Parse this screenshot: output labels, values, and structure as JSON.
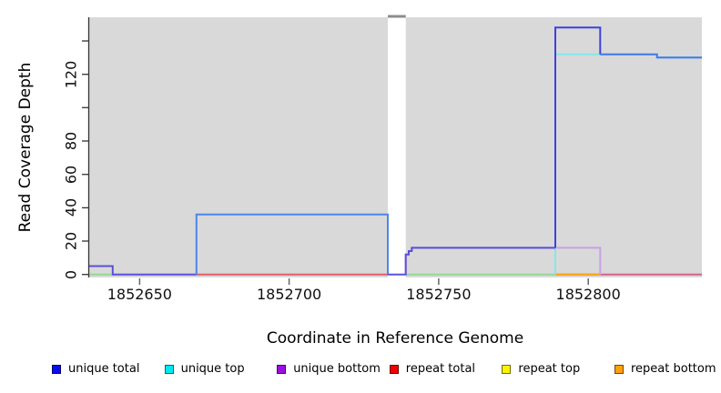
{
  "figure": {
    "background": "#ffffff",
    "panel_background": "#d9d9d9",
    "axis_color": "#333333",
    "gap_cap_color": "#8c8c8c"
  },
  "legend": {
    "items": [
      {
        "label": "unique total",
        "color": "#0b0bf0"
      },
      {
        "label": "unique top",
        "color": "#00e8f0"
      },
      {
        "label": "unique bottom",
        "color": "#9a10e0"
      },
      {
        "label": "repeat total",
        "color": "#f00000"
      },
      {
        "label": "repeat top",
        "color": "#fff200"
      },
      {
        "label": "repeat bottom",
        "color": "#ffa008"
      }
    ]
  },
  "chart_data": {
    "type": "line",
    "subtype": "step-coverage",
    "title": "",
    "xlabel": "Coordinate in Reference Genome",
    "ylabel": "Read Coverage Depth",
    "xlim": [
      1852633,
      1852838
    ],
    "ylim": [
      0,
      154
    ],
    "grid": false,
    "legend_position": "bottom",
    "panel_bg": "#d9d9d9",
    "x_ticks": [
      {
        "value": 1852650,
        "label": "1852650"
      },
      {
        "value": 1852700,
        "label": "1852700"
      },
      {
        "value": 1852750,
        "label": "1852750"
      },
      {
        "value": 1852800,
        "label": "1852800"
      }
    ],
    "y_ticks": [
      {
        "value": 0,
        "label": "0"
      },
      {
        "value": 20,
        "label": "20"
      },
      {
        "value": 40,
        "label": "40"
      },
      {
        "value": 60,
        "label": "60"
      },
      {
        "value": 80,
        "label": "80"
      },
      {
        "value": 100,
        "label": ""
      },
      {
        "value": 120,
        "label": "120"
      },
      {
        "value": 140,
        "label": ""
      }
    ],
    "gap_region": {
      "x_start": 1852733,
      "x_end": 1852739
    },
    "series": [
      {
        "name": "unique total",
        "x": [
          1852633,
          1852641,
          1852669,
          1852733,
          1852739,
          1852740,
          1852741,
          1852789,
          1852804,
          1852823
        ],
        "depth": [
          5,
          0,
          36,
          0,
          12,
          14,
          16,
          148,
          132,
          130
        ]
      },
      {
        "name": "unique top",
        "x": [
          1852633,
          1852789,
          1852823
        ],
        "depth": [
          0,
          132,
          130
        ]
      },
      {
        "name": "unique bottom",
        "x": [
          1852633,
          1852641,
          1852739,
          1852740,
          1852741,
          1852804
        ],
        "depth": [
          5,
          0,
          12,
          14,
          16,
          0
        ]
      },
      {
        "name": "repeat total",
        "x": [
          1852633
        ],
        "depth": [
          0
        ]
      },
      {
        "name": "repeat top",
        "x": [
          1852633
        ],
        "depth": [
          0
        ]
      },
      {
        "name": "repeat bottom",
        "x": [
          1852633
        ],
        "depth": [
          0
        ]
      }
    ],
    "render_segments": [
      {
        "color": "#94d894",
        "w": 2,
        "pts": [
          [
            1852633,
            0
          ],
          [
            1852641,
            0
          ]
        ]
      },
      {
        "color": "#94d894",
        "w": 2,
        "pts": [
          [
            1852739,
            0
          ],
          [
            1852789,
            0
          ]
        ]
      },
      {
        "color": "#e0606c",
        "w": 2,
        "pts": [
          [
            1852669,
            0
          ],
          [
            1852733,
            0
          ]
        ]
      },
      {
        "color": "#d8608c",
        "w": 2,
        "pts": [
          [
            1852804,
            0
          ],
          [
            1852838,
            0
          ]
        ]
      },
      {
        "color": "#ffa41c",
        "w": 2.5,
        "pts": [
          [
            1852789,
            0
          ],
          [
            1852804,
            0
          ]
        ]
      },
      {
        "color": "#c9a0e8",
        "w": 2,
        "pts": [
          [
            1852739,
            0
          ],
          [
            1852739,
            12
          ],
          [
            1852740,
            12
          ],
          [
            1852740,
            14
          ],
          [
            1852741,
            14
          ],
          [
            1852741,
            16
          ],
          [
            1852804,
            16
          ],
          [
            1852804,
            0
          ]
        ]
      },
      {
        "color": "#82e8ea",
        "w": 2,
        "pts": [
          [
            1852789,
            0
          ],
          [
            1852789,
            132
          ],
          [
            1852823,
            132
          ],
          [
            1852823,
            130
          ],
          [
            1852838,
            130
          ]
        ]
      },
      {
        "color": "#5a50d8",
        "w": 2,
        "pts": [
          [
            1852633,
            5
          ],
          [
            1852641,
            5
          ],
          [
            1852641,
            0
          ],
          [
            1852669,
            0
          ]
        ]
      },
      {
        "color": "#4c86ec",
        "w": 2,
        "pts": [
          [
            1852669,
            0
          ],
          [
            1852669,
            36
          ],
          [
            1852733,
            36
          ],
          [
            1852733,
            0
          ]
        ]
      },
      {
        "color": "#5a50d8",
        "w": 2,
        "pts": [
          [
            1852733,
            0
          ],
          [
            1852739,
            0
          ],
          [
            1852739,
            12
          ],
          [
            1852740,
            12
          ],
          [
            1852740,
            14
          ],
          [
            1852741,
            14
          ],
          [
            1852741,
            16
          ],
          [
            1852789,
            16
          ]
        ]
      },
      {
        "color": "#4040e0",
        "w": 2,
        "pts": [
          [
            1852789,
            16
          ],
          [
            1852789,
            148
          ],
          [
            1852804,
            148
          ],
          [
            1852804,
            132
          ]
        ]
      },
      {
        "color": "#4577e8",
        "w": 2,
        "pts": [
          [
            1852804,
            132
          ],
          [
            1852823,
            132
          ],
          [
            1852823,
            130
          ],
          [
            1852838,
            130
          ]
        ]
      }
    ]
  }
}
